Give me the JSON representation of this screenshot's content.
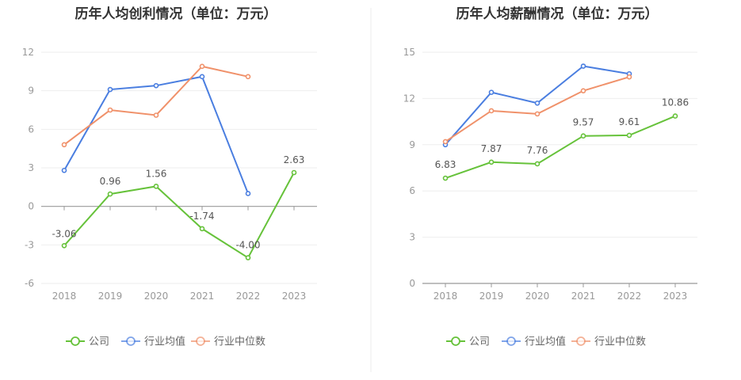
{
  "chart_data": [
    {
      "type": "line",
      "title": "历年人均创利情况（单位：万元）",
      "categories": [
        "2018",
        "2019",
        "2020",
        "2021",
        "2022",
        "2023"
      ],
      "ylim": [
        -6,
        12
      ],
      "yticks": [
        "-6",
        "-3",
        "0",
        "3",
        "6",
        "9",
        "12"
      ],
      "grid": true,
      "legend_position": "bottom",
      "series": [
        {
          "name": "公司",
          "color": "#66c23a",
          "values": [
            -3.06,
            0.96,
            1.56,
            -1.74,
            -4.0,
            2.63
          ],
          "labels": [
            "-3.06",
            "0.96",
            "1.56",
            "-1.74",
            "-4.00",
            "2.63"
          ]
        },
        {
          "name": "行业均值",
          "color": "#4a7ee0",
          "values": [
            2.8,
            9.1,
            9.4,
            10.1,
            1.0,
            null
          ]
        },
        {
          "name": "行业中位数",
          "color": "#f0916a",
          "values": [
            4.8,
            7.5,
            7.1,
            10.9,
            10.1,
            null
          ]
        }
      ]
    },
    {
      "type": "line",
      "title": "历年人均薪酬情况（单位：万元）",
      "categories": [
        "2018",
        "2019",
        "2020",
        "2021",
        "2022",
        "2023"
      ],
      "ylim": [
        0,
        15
      ],
      "yticks": [
        "0",
        "3",
        "6",
        "9",
        "12",
        "15"
      ],
      "grid": true,
      "legend_position": "bottom",
      "series": [
        {
          "name": "公司",
          "color": "#66c23a",
          "values": [
            6.83,
            7.87,
            7.76,
            9.57,
            9.61,
            10.86
          ],
          "labels": [
            "6.83",
            "7.87",
            "7.76",
            "9.57",
            "9.61",
            "10.86"
          ]
        },
        {
          "name": "行业均值",
          "color": "#4a7ee0",
          "values": [
            9.0,
            12.4,
            11.7,
            14.1,
            13.6,
            null
          ]
        },
        {
          "name": "行业中位数",
          "color": "#f0916a",
          "values": [
            9.2,
            11.2,
            11.0,
            12.5,
            13.4,
            null
          ]
        }
      ]
    }
  ]
}
